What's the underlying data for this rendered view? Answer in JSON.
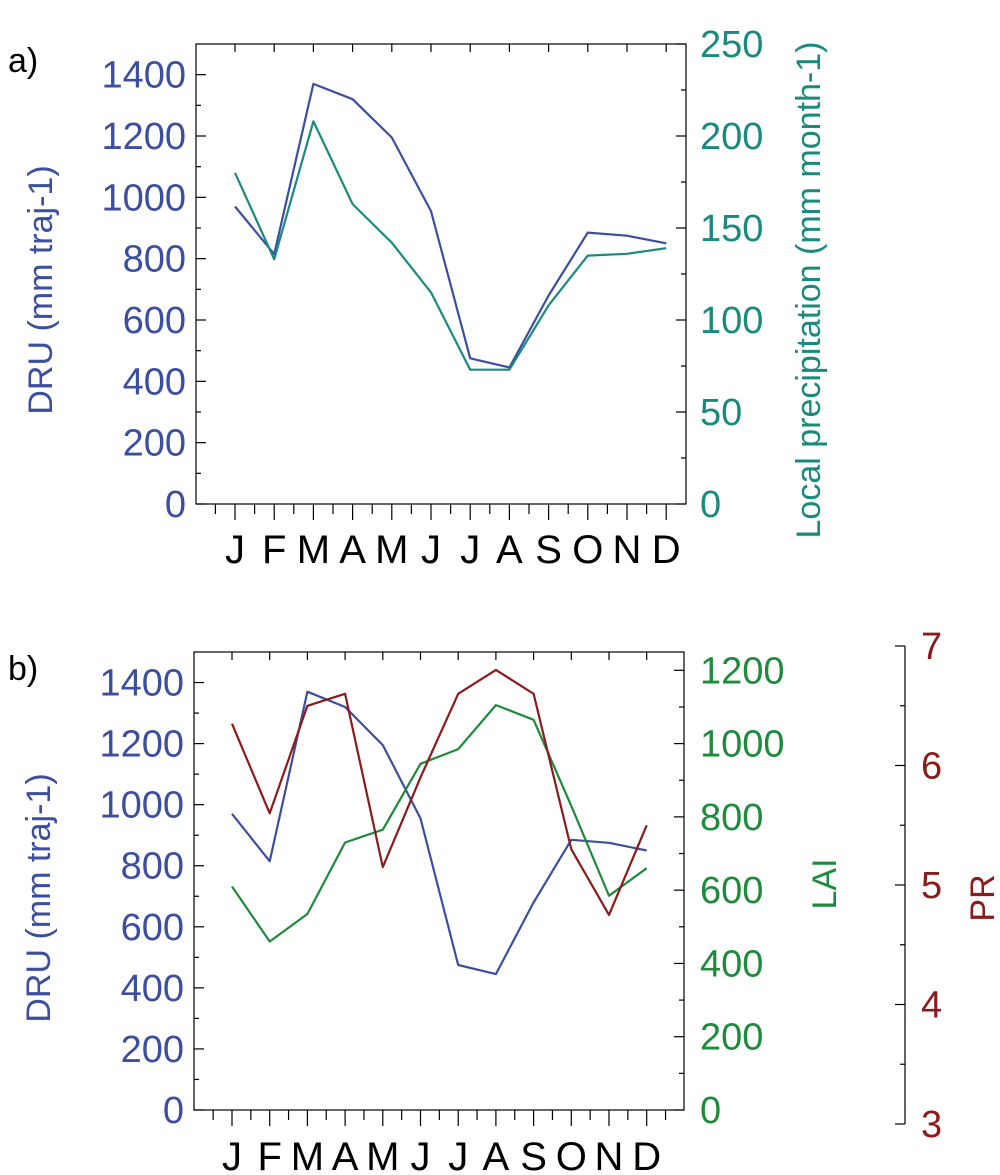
{
  "colors": {
    "dru": "#3b4ea0",
    "precip": "#1a8a7c",
    "lai": "#1e8a3c",
    "pr": "#8b1a1a",
    "axis": "#000000"
  },
  "chart_data": [
    {
      "type": "line",
      "panel_label": "a)",
      "categories": [
        "J",
        "F",
        "M",
        "A",
        "M",
        "J",
        "J",
        "A",
        "S",
        "O",
        "N",
        "D"
      ],
      "axes": {
        "left": {
          "title": "DRU (mm traj-1)",
          "ylim": [
            0,
            1500
          ],
          "ticks": [
            0,
            200,
            400,
            600,
            800,
            1000,
            1200,
            1400
          ],
          "color_key": "dru"
        },
        "right": {
          "title": "Local precipitation (mm month-1)",
          "ylim": [
            0,
            250
          ],
          "ticks": [
            0,
            50,
            100,
            150,
            200,
            250
          ],
          "color_key": "precip"
        }
      },
      "series": [
        {
          "axis": "left",
          "color_key": "dru",
          "values": [
            970,
            815,
            1370,
            1320,
            1195,
            955,
            475,
            445,
            680,
            885,
            875,
            850
          ]
        },
        {
          "axis": "right",
          "color_key": "precip",
          "values": [
            180,
            133,
            208,
            163,
            142,
            115,
            73,
            73,
            108,
            135,
            136,
            139
          ]
        }
      ]
    },
    {
      "type": "line",
      "panel_label": "b)",
      "categories": [
        "J",
        "F",
        "M",
        "A",
        "M",
        "J",
        "J",
        "A",
        "S",
        "O",
        "N",
        "D"
      ],
      "axes": {
        "left": {
          "title": "DRU (mm traj-1)",
          "ylim": [
            0,
            1500
          ],
          "ticks": [
            0,
            200,
            400,
            600,
            800,
            1000,
            1200,
            1400
          ],
          "color_key": "dru"
        },
        "right": {
          "title": "LAI",
          "ylim": [
            0,
            1250
          ],
          "ticks": [
            0,
            200,
            400,
            600,
            800,
            1000,
            1200
          ],
          "color_key": "lai"
        },
        "right2": {
          "title": "PR",
          "ylim": [
            3,
            7
          ],
          "ticks": [
            3,
            4,
            5,
            6,
            7
          ],
          "color_key": "pr"
        }
      },
      "series": [
        {
          "axis": "left",
          "color_key": "dru",
          "values": [
            970,
            815,
            1370,
            1320,
            1195,
            955,
            475,
            445,
            680,
            885,
            875,
            850
          ]
        },
        {
          "axis": "right",
          "color_key": "lai",
          "values": [
            610,
            460,
            535,
            730,
            765,
            945,
            985,
            1105,
            1065,
            830,
            585,
            660
          ]
        },
        {
          "axis": "right2",
          "color_key": "pr",
          "values": [
            6.35,
            5.6,
            6.5,
            6.6,
            5.15,
            5.9,
            6.6,
            6.8,
            6.6,
            5.3,
            4.75,
            5.5
          ]
        }
      ]
    }
  ]
}
